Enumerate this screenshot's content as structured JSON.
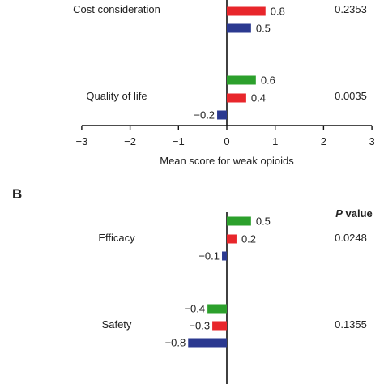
{
  "chart_data": [
    {
      "type": "bar",
      "orientation": "horizontal",
      "panel_label": "",
      "xlabel": "Mean score for weak opioids",
      "xlim": [
        -3,
        3
      ],
      "xticks": [
        "−3",
        "−2",
        "−1",
        "0",
        "1",
        "2",
        "3"
      ],
      "pvalue_header": "",
      "categories": [
        "Cost consideration",
        "Quality of life"
      ],
      "series_colors": [
        "#2ca02c",
        "#e8262b",
        "#2b3990"
      ],
      "groups": [
        {
          "label": "Cost consideration",
          "p_value": "0.2353",
          "bars": [
            {
              "series": 0,
              "value": null,
              "label": ""
            },
            {
              "series": 1,
              "value": 0.8,
              "label": "0.8"
            },
            {
              "series": 2,
              "value": 0.5,
              "label": "0.5"
            }
          ]
        },
        {
          "label": "Quality of life",
          "p_value": "0.0035",
          "bars": [
            {
              "series": 0,
              "value": 0.6,
              "label": "0.6"
            },
            {
              "series": 1,
              "value": 0.4,
              "label": "0.4"
            },
            {
              "series": 2,
              "value": -0.2,
              "label": "−0.2"
            }
          ]
        }
      ]
    },
    {
      "type": "bar",
      "orientation": "horizontal",
      "panel_label": "B",
      "xlabel": "",
      "xlim": [
        -3,
        3
      ],
      "xticks": [],
      "pvalue_header": "P value",
      "categories": [
        "Efficacy",
        "Safety"
      ],
      "series_colors": [
        "#2ca02c",
        "#e8262b",
        "#2b3990"
      ],
      "groups": [
        {
          "label": "Efficacy",
          "p_value": "0.0248",
          "bars": [
            {
              "series": 0,
              "value": 0.5,
              "label": "0.5"
            },
            {
              "series": 1,
              "value": 0.2,
              "label": "0.2"
            },
            {
              "series": 2,
              "value": -0.1,
              "label": "−0.1"
            }
          ]
        },
        {
          "label": "Safety",
          "p_value": "0.1355",
          "bars": [
            {
              "series": 0,
              "value": -0.4,
              "label": "−0.4"
            },
            {
              "series": 1,
              "value": -0.3,
              "label": "−0.3"
            },
            {
              "series": 2,
              "value": -0.8,
              "label": "−0.8"
            }
          ]
        }
      ]
    }
  ]
}
